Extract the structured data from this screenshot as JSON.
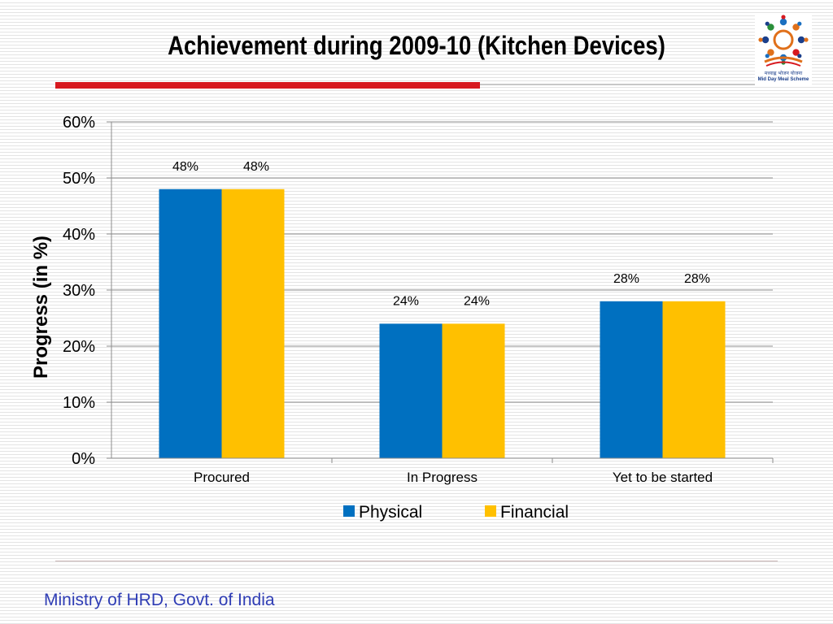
{
  "slide": {
    "title": "Achievement during 2009-10 (Kitchen Devices)",
    "footer": "Ministry of HRD, Govt. of India",
    "logo_caption_hi": "मध्याह्न भोजन योजना",
    "logo_caption_en": "Mid Day Meal Scheme"
  },
  "colors": {
    "physical": "#0070c0",
    "financial": "#ffc000",
    "accent_rule": "#d7191f",
    "footer_text": "#2f3db5"
  },
  "chart_data": {
    "type": "bar",
    "title": "",
    "categories": [
      "Procured",
      "In Progress",
      "Yet to be started"
    ],
    "series": [
      {
        "name": "Physical",
        "values": [
          48,
          24,
          28
        ],
        "labels": [
          "48%",
          "24%",
          "28%"
        ]
      },
      {
        "name": "Financial",
        "values": [
          48,
          24,
          28
        ],
        "labels": [
          "48%",
          "24%",
          "28%"
        ]
      }
    ],
    "xlabel": "",
    "ylabel": "Progress (in %)",
    "ylim": [
      0,
      60
    ],
    "yticks": [
      0,
      10,
      20,
      30,
      40,
      50,
      60
    ],
    "ytick_labels": [
      "0%",
      "10%",
      "20%",
      "30%",
      "40%",
      "50%",
      "60%"
    ],
    "grid": true,
    "legend_position": "bottom"
  }
}
